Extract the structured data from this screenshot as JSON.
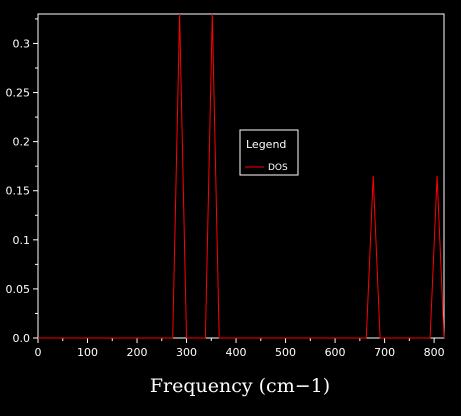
{
  "chart_data": {
    "type": "line",
    "title": "",
    "xlabel": "Frequency (cm−1)",
    "ylabel": "",
    "xlim": [
      0,
      820
    ],
    "ylim": [
      0,
      0.33
    ],
    "x_ticks": [
      0,
      100,
      200,
      300,
      400,
      500,
      600,
      700,
      800
    ],
    "y_ticks": [
      0.0,
      0.05,
      0.1,
      0.15,
      0.2,
      0.25,
      0.3
    ],
    "x_tick_labels": [
      "0",
      "100",
      "200",
      "300",
      "400",
      "500",
      "600",
      "700",
      "800"
    ],
    "y_tick_labels": [
      "0.0",
      "0.05",
      "0.1",
      "0.15",
      "0.2",
      "0.25",
      "0.3"
    ],
    "grid": false,
    "background": "#000000",
    "axis_color": "#ffffff",
    "legend": {
      "title": "Legend",
      "placement": "center-right",
      "entries": [
        {
          "label": "DOS",
          "color": "#ff0000"
        }
      ]
    },
    "series": [
      {
        "name": "DOS",
        "color": "#ff0000",
        "points": [
          [
            0,
            0
          ],
          [
            272,
            0
          ],
          [
            286,
            0.33
          ],
          [
            300,
            0
          ],
          [
            338,
            0
          ],
          [
            352,
            0.33
          ],
          [
            366,
            0
          ],
          [
            663,
            0
          ],
          [
            677,
            0.165
          ],
          [
            691,
            0
          ],
          [
            792,
            0
          ],
          [
            806,
            0.165
          ],
          [
            820,
            0
          ]
        ]
      }
    ]
  }
}
